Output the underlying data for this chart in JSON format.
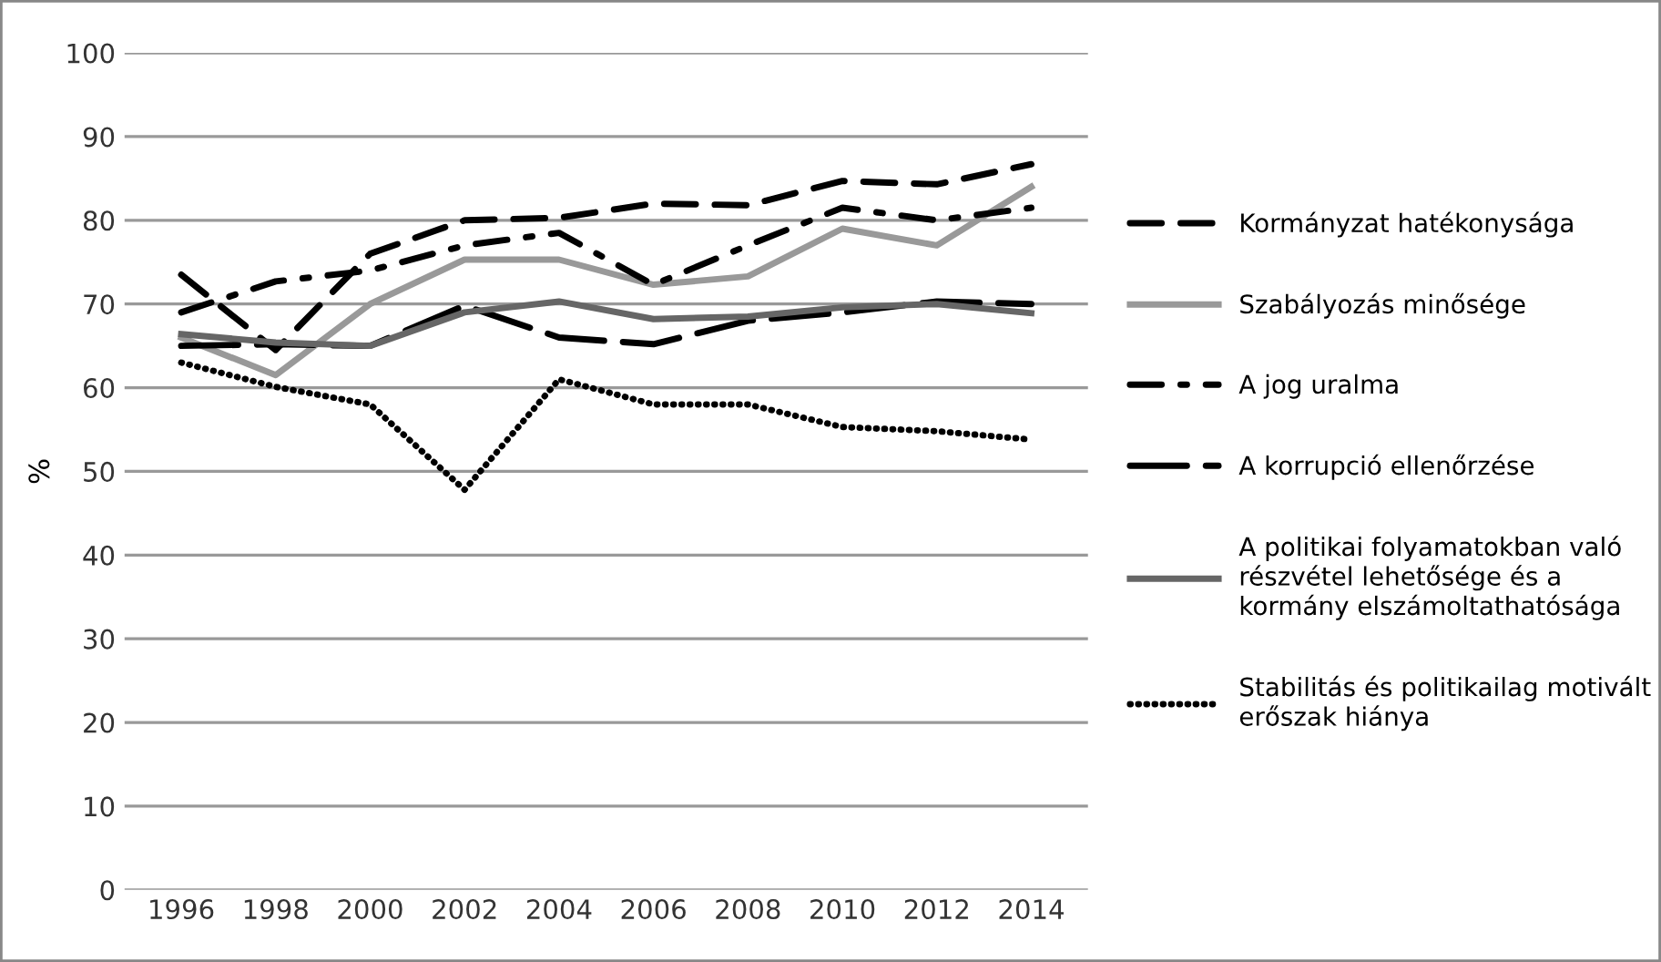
{
  "chart_data": {
    "type": "line",
    "ylabel": "%",
    "categories": [
      "1996",
      "1998",
      "2000",
      "2002",
      "2004",
      "2006",
      "2008",
      "2010",
      "2012",
      "2014"
    ],
    "ylim": [
      0,
      100
    ],
    "yticks": [
      0,
      10,
      20,
      30,
      40,
      50,
      60,
      70,
      80,
      90,
      100
    ],
    "grid": "y",
    "legend": "right",
    "marker": "none",
    "series": [
      {
        "name": "Kormányzat hatékonysága",
        "color": "#000000",
        "line_style": "dashed",
        "values": [
          73.5,
          64.5,
          76,
          80,
          80.3,
          82,
          81.8,
          84.7,
          84.3,
          86.7
        ]
      },
      {
        "name": "Szabályozás minősége",
        "color": "#999999",
        "line_style": "solid",
        "values": [
          66,
          61.5,
          70,
          75.3,
          75.3,
          72.3,
          73.3,
          79,
          77,
          84
        ]
      },
      {
        "name": "A jog uralma",
        "color": "#000000",
        "line_style": "dashdot",
        "values": [
          69,
          72.7,
          74,
          77,
          78.5,
          72.3,
          77,
          81.5,
          80,
          81.5
        ]
      },
      {
        "name": "A korrupció ellenőrzése",
        "color": "#000000",
        "line_style": "longdash",
        "values": [
          65,
          65.2,
          65,
          69.8,
          66,
          65.2,
          68,
          69,
          70.3,
          70
        ]
      },
      {
        "name": "A politikai folyamatokban való\nrészvétel lehetősége és a\nkormány elszámoltathatósága",
        "color": "#666666",
        "line_style": "solid",
        "values": [
          66.4,
          65.4,
          65,
          69,
          70.3,
          68.2,
          68.5,
          69.6,
          70,
          68.9
        ]
      },
      {
        "name": "Stabilitás és politikailag motivált\nerőszak hiánya",
        "color": "#000000",
        "line_style": "dotted",
        "values": [
          63,
          60.1,
          58,
          47.8,
          61,
          58,
          58,
          55.3,
          54.8,
          53.8
        ]
      }
    ]
  }
}
